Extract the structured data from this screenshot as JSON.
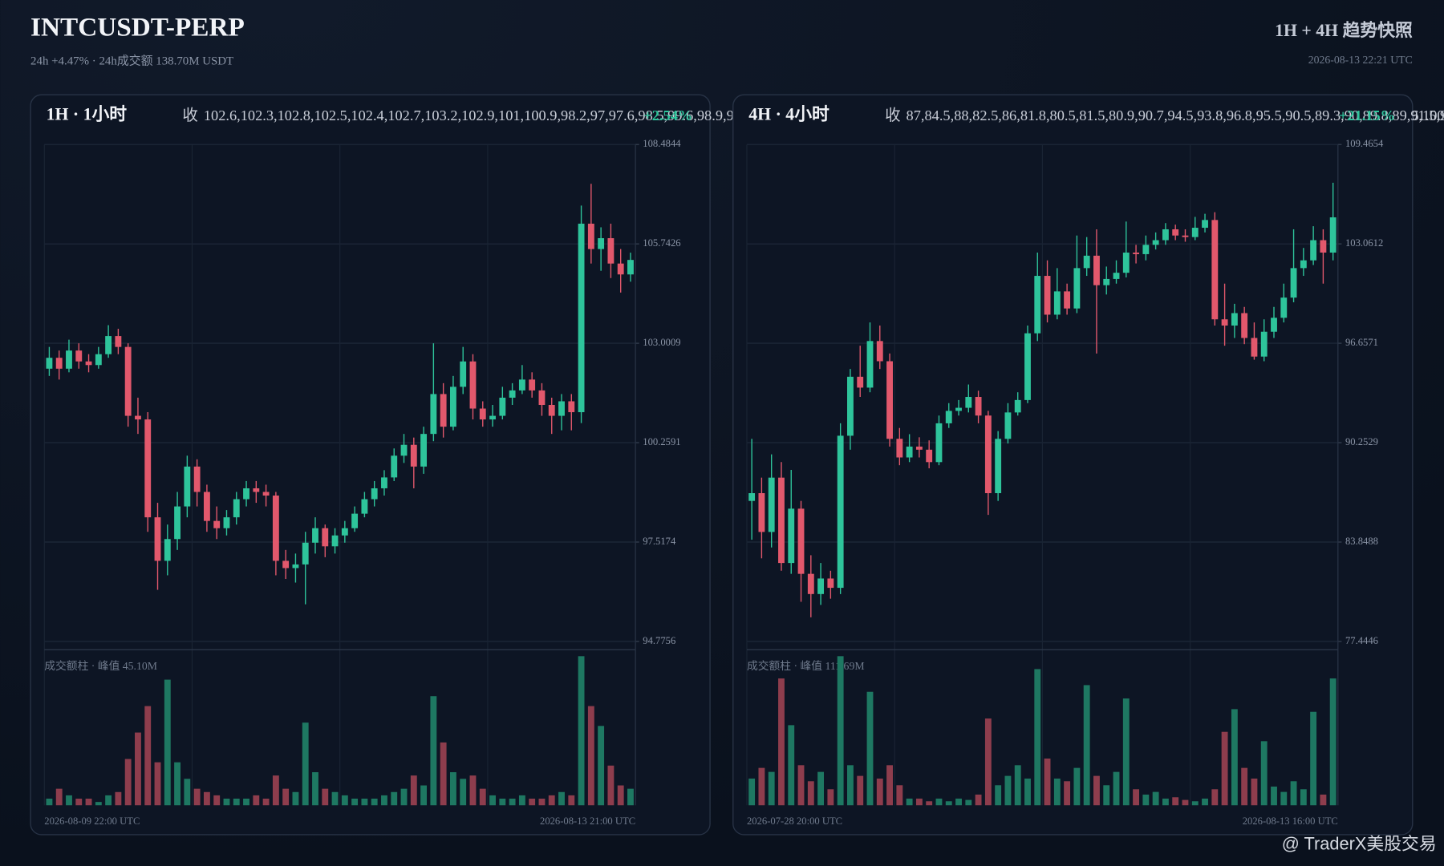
{
  "header": {
    "title": "INTCUSDT-PERP",
    "subtitle": "24h +4.47% · 24h成交额 138.70M USDT",
    "right_title": "1H + 4H 趋势快照",
    "timestamp": "2026-08-13 22:21 UTC"
  },
  "watermark": "@ TraderX美股交易",
  "chart_data": [
    {
      "type": "candlestick",
      "title": "1H · 1小时",
      "close_label": "收",
      "close": [
        102.6,
        102.3,
        102.8,
        102.5,
        102.4,
        102.7,
        103.2,
        102.9,
        101.0,
        100.9,
        98.2,
        97.0,
        97.6,
        98.5,
        99.6,
        98.9,
        98.1,
        97.9,
        98.2,
        98.7,
        99.0,
        98.9,
        98.8,
        97.0,
        96.8,
        96.9,
        97.5,
        97.9,
        97.4,
        97.7,
        97.9,
        98.3,
        98.7,
        99.0,
        99.3,
        99.9,
        100.2,
        99.6,
        100.5,
        101.6,
        100.7,
        101.8,
        102.5,
        101.2,
        100.9,
        101.0,
        101.5,
        101.7,
        102.0,
        101.7,
        101.3,
        101.0,
        101.4,
        101.1,
        106.3,
        105.6,
        105.9,
        105.2,
        104.9,
        105.3
      ],
      "change": "+2.54%",
      "up_color": "#2ec49b",
      "down_color": "#e2586c",
      "volume_up_color": "#1e7862",
      "volume_down_color": "#8e3d4d",
      "ylim": [
        94.7756,
        108.4844
      ],
      "yticks": [
        94.7756,
        97.5174,
        100.2591,
        103.0009,
        105.7426,
        108.4844
      ],
      "grid": true,
      "xlabels": [
        "2026-08-09 22:00 UTC",
        "2026-08-13 21:00 UTC"
      ],
      "volume_title": "成交额柱 · 峰值 45.10M",
      "vlim": [
        0,
        45.1
      ],
      "open": [
        102.3,
        102.6,
        102.3,
        102.8,
        102.5,
        102.4,
        102.7,
        103.2,
        102.9,
        101.0,
        100.9,
        98.2,
        97.0,
        97.6,
        98.5,
        99.6,
        98.9,
        98.1,
        97.9,
        98.2,
        98.7,
        99.0,
        98.9,
        98.8,
        97.0,
        96.8,
        96.9,
        97.5,
        97.9,
        97.4,
        97.7,
        97.9,
        98.3,
        98.7,
        99.0,
        99.3,
        99.9,
        100.2,
        99.6,
        100.5,
        101.6,
        100.7,
        101.8,
        102.5,
        101.2,
        100.9,
        101.0,
        101.5,
        101.7,
        102.0,
        101.7,
        101.3,
        101.0,
        101.4,
        101.1,
        106.3,
        105.6,
        105.9,
        105.2,
        104.9
      ],
      "high": [
        102.9,
        102.8,
        103.1,
        103.0,
        102.7,
        102.9,
        103.5,
        103.4,
        103.0,
        101.5,
        101.1,
        98.6,
        98.0,
        98.9,
        99.9,
        99.8,
        99.1,
        98.5,
        98.4,
        98.9,
        99.2,
        99.2,
        99.1,
        98.9,
        97.3,
        97.2,
        97.8,
        98.2,
        98.0,
        97.9,
        98.1,
        98.5,
        98.9,
        99.2,
        99.5,
        100.1,
        100.5,
        100.4,
        100.7,
        103.0,
        101.9,
        102.1,
        102.9,
        102.7,
        101.4,
        101.3,
        101.8,
        101.9,
        102.4,
        102.2,
        101.9,
        101.5,
        101.6,
        101.6,
        106.8,
        107.4,
        106.2,
        106.3,
        105.6,
        105.5
      ],
      "low": [
        102.1,
        102.0,
        102.2,
        102.3,
        102.2,
        102.3,
        102.6,
        102.7,
        100.7,
        100.5,
        97.8,
        96.2,
        96.6,
        97.3,
        98.2,
        98.5,
        97.8,
        97.6,
        97.7,
        98.0,
        98.5,
        98.6,
        98.5,
        96.6,
        96.5,
        96.4,
        95.8,
        97.2,
        97.1,
        97.2,
        97.5,
        97.8,
        98.2,
        98.5,
        98.8,
        99.2,
        99.7,
        99.0,
        99.4,
        100.3,
        100.4,
        100.6,
        101.6,
        100.9,
        100.7,
        100.7,
        100.9,
        101.3,
        101.6,
        101.5,
        101.0,
        100.5,
        100.6,
        100.6,
        100.8,
        105.2,
        105.0,
        104.8,
        104.4,
        104.7
      ],
      "volume": [
        2,
        5,
        3,
        2,
        2,
        1,
        3,
        4,
        14,
        22,
        30,
        13,
        38,
        13,
        8,
        5,
        4,
        3,
        2,
        2,
        2,
        3,
        2,
        9,
        5,
        4,
        25,
        10,
        5,
        4,
        3,
        2,
        2,
        2,
        3,
        4,
        5,
        9,
        6,
        33,
        19,
        10,
        8,
        9,
        5,
        3,
        2,
        2,
        3,
        2,
        2,
        3,
        4,
        3,
        45.1,
        30,
        24,
        12,
        6,
        5
      ]
    },
    {
      "type": "candlestick",
      "title": "4H · 4小时",
      "close_label": "收",
      "close": [
        87.0,
        84.5,
        88.0,
        82.5,
        86.0,
        81.8,
        80.5,
        81.5,
        80.9,
        90.7,
        94.5,
        93.8,
        96.8,
        95.5,
        90.5,
        89.3,
        90.0,
        89.8,
        89.0,
        91.5,
        92.3,
        92.5,
        93.2,
        92.0,
        87.0,
        90.5,
        92.2,
        93.0,
        97.3,
        101.0,
        98.5,
        100.0,
        98.9,
        101.5,
        102.3,
        100.4,
        100.8,
        101.2,
        102.5,
        102.4,
        103.0,
        103.3,
        104.0,
        103.6,
        103.5,
        104.1,
        104.6,
        98.2,
        97.8,
        98.6,
        97.0,
        95.8,
        97.4,
        98.3,
        99.6,
        101.5,
        102.0,
        103.3,
        102.5,
        104.77
      ],
      "change": "+21.15%",
      "up_color": "#2ec49b",
      "down_color": "#e2586c",
      "volume_up_color": "#1e7862",
      "volume_down_color": "#8e3d4d",
      "ylim": [
        77.4446,
        109.4654
      ],
      "yticks": [
        77.4446,
        83.8488,
        90.2529,
        96.6571,
        103.0612,
        109.4654
      ],
      "grid": true,
      "xlabels": [
        "2026-07-28 20:00 UTC",
        "2026-08-13 16:00 UTC"
      ],
      "volume_title": "成交额柱 · 峰值 111.69M",
      "vlim": [
        0,
        111.69
      ],
      "open": [
        86.5,
        87.0,
        84.5,
        88.0,
        82.5,
        86.0,
        81.8,
        80.5,
        81.5,
        80.9,
        90.7,
        94.5,
        93.8,
        96.8,
        95.5,
        90.5,
        89.3,
        90.0,
        89.8,
        89.0,
        91.5,
        92.3,
        92.5,
        93.2,
        92.0,
        87.0,
        90.5,
        92.2,
        93.0,
        97.3,
        101.0,
        98.5,
        100.0,
        98.9,
        101.5,
        102.3,
        100.4,
        100.8,
        101.2,
        102.5,
        102.4,
        103.0,
        103.3,
        104.0,
        103.6,
        103.5,
        104.1,
        104.6,
        98.2,
        97.8,
        98.6,
        97.0,
        95.8,
        97.4,
        98.3,
        99.6,
        101.5,
        102.0,
        103.3,
        102.5
      ],
      "high": [
        90.5,
        88.0,
        89.5,
        89.0,
        88.5,
        86.5,
        83.0,
        82.5,
        82.0,
        91.5,
        95.0,
        96.5,
        98.0,
        97.8,
        96.0,
        91.2,
        90.8,
        90.6,
        90.4,
        92.0,
        92.8,
        93.0,
        94.0,
        93.6,
        92.3,
        91.0,
        92.8,
        93.5,
        97.8,
        102.5,
        102.0,
        101.5,
        100.5,
        103.6,
        103.5,
        104.0,
        101.6,
        102.0,
        104.5,
        103.0,
        103.6,
        103.8,
        104.4,
        104.3,
        104.0,
        104.8,
        105.0,
        105.1,
        100.5,
        99.2,
        99.0,
        98.0,
        98.2,
        99.0,
        100.5,
        104.0,
        102.8,
        104.2,
        104.0,
        107.0
      ],
      "low": [
        84.0,
        82.8,
        83.5,
        82.0,
        81.8,
        80.0,
        79.0,
        79.8,
        80.2,
        80.5,
        89.8,
        93.2,
        93.5,
        95.0,
        90.0,
        88.8,
        89.0,
        89.3,
        88.6,
        88.8,
        91.2,
        92.0,
        92.2,
        91.5,
        85.6,
        86.5,
        90.2,
        92.0,
        92.8,
        96.8,
        98.0,
        98.2,
        98.5,
        98.6,
        101.0,
        96.0,
        99.8,
        100.5,
        100.9,
        101.8,
        102.0,
        102.7,
        103.0,
        103.3,
        103.2,
        103.3,
        103.8,
        97.8,
        96.5,
        97.0,
        96.6,
        95.6,
        95.5,
        97.0,
        98.0,
        99.3,
        101.0,
        101.7,
        100.5,
        102.0
      ],
      "volume": [
        20,
        28,
        25,
        95,
        60,
        30,
        18,
        25,
        12,
        111.69,
        30,
        22,
        85,
        20,
        30,
        15,
        5,
        5,
        3,
        5,
        3,
        5,
        4,
        8,
        65,
        15,
        22,
        30,
        20,
        102,
        35,
        20,
        18,
        28,
        90,
        22,
        15,
        25,
        80,
        12,
        8,
        10,
        5,
        6,
        4,
        3,
        5,
        12,
        55,
        72,
        28,
        20,
        48,
        14,
        10,
        18,
        12,
        70,
        8,
        95
      ]
    }
  ]
}
